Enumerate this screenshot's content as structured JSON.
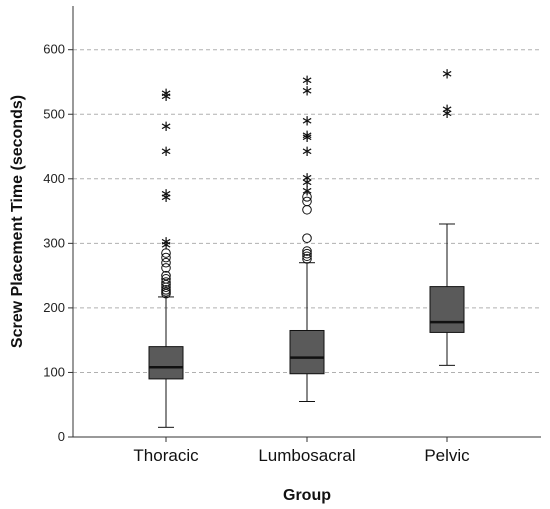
{
  "chart_data": {
    "type": "boxplot",
    "xlabel": "Group",
    "ylabel": "Screw Placement Time (seconds)",
    "ylim": [
      0,
      665
    ],
    "yticks": [
      0,
      100,
      200,
      300,
      400,
      500,
      600
    ],
    "grid": "horizontal-dashed",
    "box_color": "#5a5a5a",
    "categories": [
      "Thoracic",
      "Lumbosacral",
      "Pelvic"
    ],
    "series": [
      {
        "category": "Thoracic",
        "whisker_low": 15,
        "q1": 90,
        "median": 108,
        "q3": 140,
        "whisker_high": 217,
        "outliers_circle": [
          222,
          225,
          228,
          232,
          236,
          240,
          245,
          250,
          262,
          270,
          278,
          285
        ],
        "outliers_star": [
          298,
          303,
          372,
          377,
          443,
          482,
          528,
          533
        ]
      },
      {
        "category": "Lumbosacral",
        "whisker_low": 55,
        "q1": 98,
        "median": 123,
        "q3": 165,
        "whisker_high": 270,
        "outliers_circle": [
          276,
          280,
          284,
          288,
          308,
          352,
          365,
          372
        ],
        "outliers_star": [
          382,
          395,
          402,
          443,
          465,
          468,
          490,
          537,
          553
        ]
      },
      {
        "category": "Pelvic",
        "whisker_low": 111,
        "q1": 162,
        "median": 178,
        "q3": 233,
        "whisker_high": 330,
        "outliers_circle": [],
        "outliers_star": [
          502,
          508,
          563
        ]
      }
    ]
  }
}
